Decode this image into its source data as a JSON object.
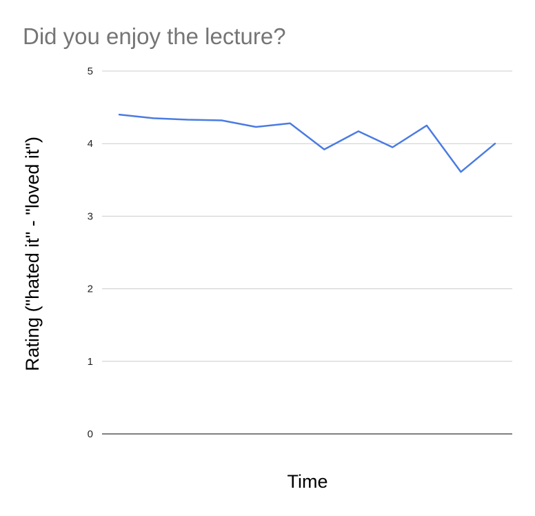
{
  "chart_data": {
    "type": "line",
    "title": "Did you enjoy the lecture?",
    "xlabel": "Time",
    "ylabel": "Rating (\"hated it\" - \"loved it\")",
    "ylim": [
      0,
      5
    ],
    "yticks": [
      "0",
      "1",
      "2",
      "3",
      "4",
      "5"
    ],
    "x": [
      1,
      2,
      3,
      4,
      5,
      6,
      7,
      8,
      9,
      10,
      11,
      12
    ],
    "series": [
      {
        "values": [
          4.4,
          4.35,
          4.33,
          4.32,
          4.23,
          4.28,
          3.92,
          4.17,
          3.95,
          4.25,
          3.61,
          4.0
        ],
        "color": "#4a7be2"
      }
    ],
    "grid": true,
    "legend": "none"
  }
}
